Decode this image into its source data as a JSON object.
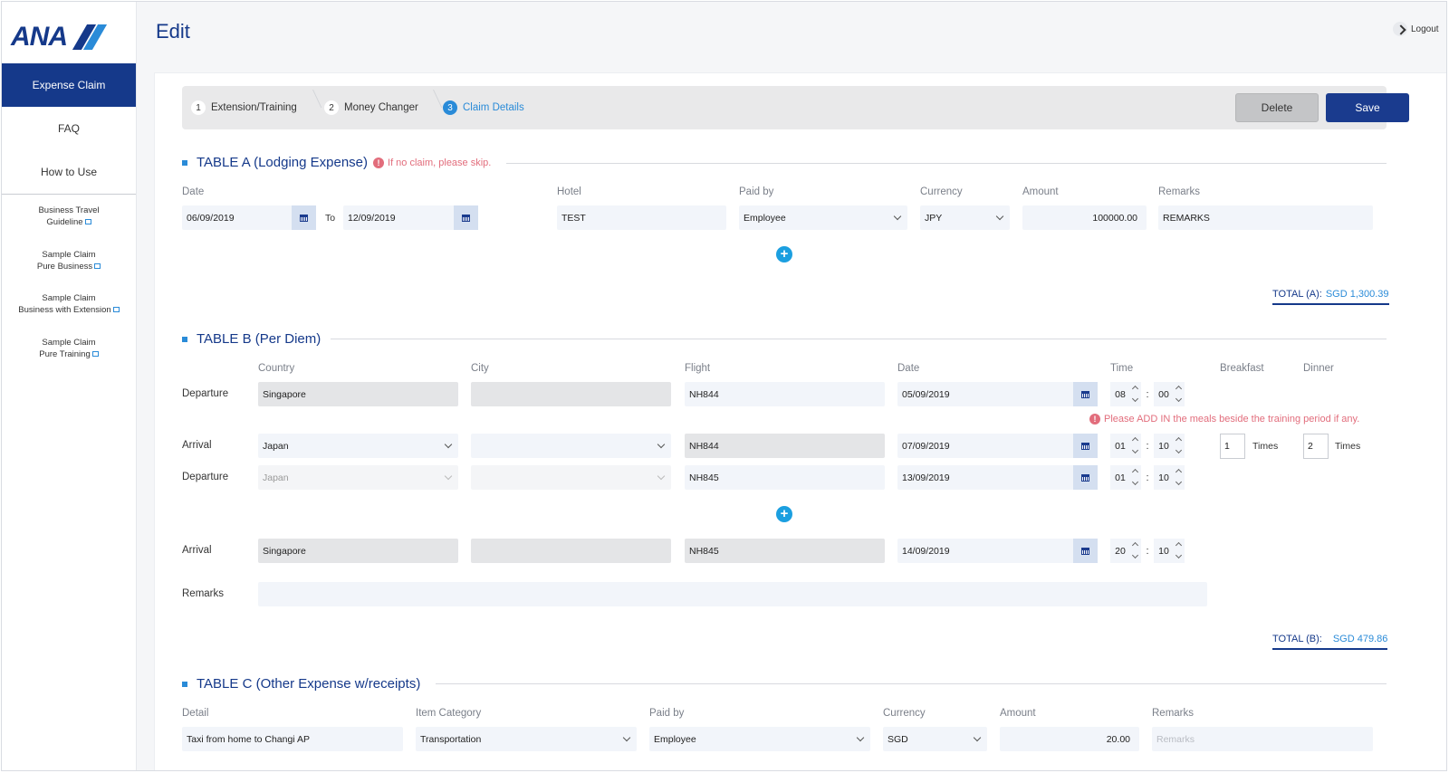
{
  "app": {
    "logo_text": "ANA",
    "page_title": "Edit",
    "logout": "Logout"
  },
  "sidebar": {
    "active": "Expense Claim",
    "items": [
      "FAQ",
      "How to Use"
    ],
    "links": [
      [
        "Business Travel",
        "Guideline"
      ],
      [
        "Sample Claim",
        "Pure Business"
      ],
      [
        "Sample Claim",
        "Business with Extension"
      ],
      [
        "Sample Claim",
        "Pure Training"
      ]
    ]
  },
  "stepper": {
    "steps": [
      {
        "num": "1",
        "label": "Extension/Training"
      },
      {
        "num": "2",
        "label": "Money Changer"
      },
      {
        "num": "3",
        "label": "Claim Details"
      }
    ],
    "active_step": 3,
    "delete_label": "Delete",
    "save_label": "Save"
  },
  "table_a": {
    "title": "TABLE A (Lodging Expense)",
    "warning": "If no claim, please skip.",
    "headers": {
      "date": "Date",
      "hotel": "Hotel",
      "paid_by": "Paid by",
      "currency": "Currency",
      "amount": "Amount",
      "remarks": "Remarks"
    },
    "to_label": "To",
    "row": {
      "date_from": "06/09/2019",
      "date_to": "12/09/2019",
      "hotel": "TEST",
      "paid_by": "Employee",
      "currency": "JPY",
      "amount": "100000.00",
      "remarks": "REMARKS"
    },
    "total_label": "TOTAL (A):",
    "total_value": "SGD 1,300.39"
  },
  "table_b": {
    "title": "TABLE B (Per Diem)",
    "headers": {
      "country": "Country",
      "city": "City",
      "flight": "Flight",
      "date": "Date",
      "time": "Time",
      "breakfast": "Breakfast",
      "dinner": "Dinner"
    },
    "warning": "Please ADD IN the meals beside the training period if any.",
    "rows": [
      {
        "label": "Departure",
        "country": "Singapore",
        "city": "",
        "flight": "NH844",
        "date": "05/09/2019",
        "hh": "08",
        "mm": "00"
      },
      {
        "label": "Arrival",
        "country": "Japan",
        "city": "",
        "flight": "NH844",
        "date": "07/09/2019",
        "hh": "01",
        "mm": "10"
      },
      {
        "label": "Departure",
        "country": "Japan",
        "city": "",
        "flight": "NH845",
        "date": "13/09/2019",
        "hh": "01",
        "mm": "10"
      },
      {
        "label": "Arrival",
        "country": "Singapore",
        "city": "",
        "flight": "NH845",
        "date": "14/09/2019",
        "hh": "20",
        "mm": "10"
      }
    ],
    "breakfast_count": "1",
    "dinner_count": "2",
    "times_label": "Times",
    "remarks_label": "Remarks",
    "total_label": "TOTAL (B):",
    "total_value": "SGD 479.86"
  },
  "table_c": {
    "title": "TABLE C (Other Expense w/receipts)",
    "headers": {
      "detail": "Detail",
      "item_category": "Item Category",
      "paid_by": "Paid by",
      "currency": "Currency",
      "amount": "Amount",
      "remarks": "Remarks"
    },
    "row": {
      "detail": "Taxi from home to Changi AP",
      "item_category": "Transportation",
      "paid_by": "Employee",
      "currency": "SGD",
      "amount": "20.00",
      "remarks_placeholder": "Remarks"
    }
  },
  "colors": {
    "primary": "#15398a",
    "accent": "#2a8bd8",
    "warning": "#e26d7c",
    "plus": "#1b9fe0"
  }
}
